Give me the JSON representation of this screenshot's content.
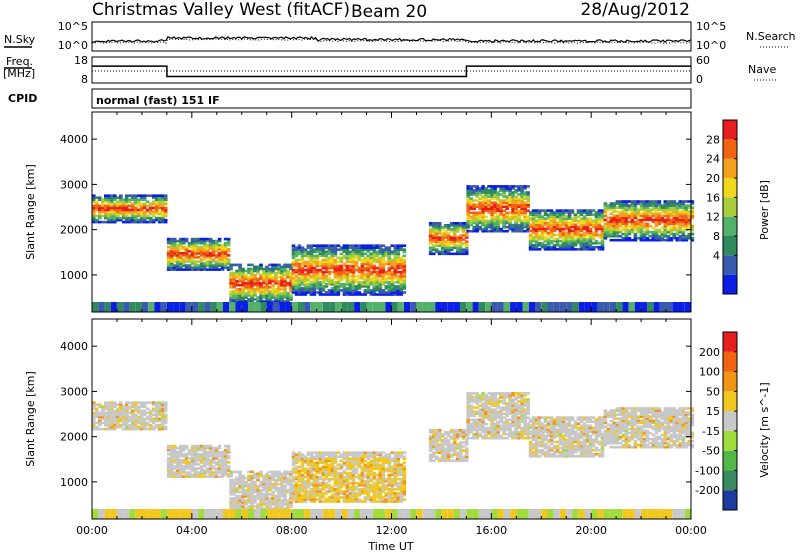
{
  "header": {
    "radar": "Christmas Valley West (fitACF)",
    "beam": "Beam 20",
    "date": "28/Aug/2012"
  },
  "status_panels": {
    "nsky_label": "N.Sky",
    "nsearch_label": "N.Search",
    "noise_scale_top": "10^5",
    "noise_scale_bottom": "10^0",
    "freq_label_line1": "Freq.",
    "freq_label_line2": "[MHz]",
    "freq_ticks": [
      "18",
      "8"
    ],
    "nave_label": "Nave",
    "nave_ticks": [
      "60",
      "0"
    ],
    "cpid_label": "CPID",
    "cpid_value": "normal (fast) 151 IF",
    "frequency_mhz": [
      {
        "start_h": 0,
        "end_h": 3,
        "value": 14.5
      },
      {
        "start_h": 3,
        "end_h": 15,
        "value": 10.5
      },
      {
        "start_h": 15,
        "end_h": 24,
        "value": 14.5
      }
    ]
  },
  "chart_data": [
    {
      "type": "heatmap",
      "quantity": "power",
      "xlabel": "",
      "ylabel": "Slant Range [km]",
      "x_range_h": [
        0,
        24
      ],
      "ylim": [
        180,
        4600
      ],
      "yticks": [
        1000,
        2000,
        3000,
        4000
      ],
      "colorbar": {
        "label": "Power [dB]",
        "ticks": [
          "28",
          "24",
          "20",
          "16",
          "12",
          "8",
          "4"
        ],
        "colors": [
          "#0a1ee6",
          "#3a5ab0",
          "#2f8a5e",
          "#52b26a",
          "#a8cc3a",
          "#f0d81e",
          "#f5a01e",
          "#f06414",
          "#e61e1e"
        ]
      },
      "regions": [
        {
          "start_h": 0,
          "end_h": 3,
          "range_km": [
            2300,
            2600
          ]
        },
        {
          "start_h": 3,
          "end_h": 5.5,
          "range_km": [
            1250,
            1650
          ]
        },
        {
          "start_h": 5.5,
          "end_h": 8,
          "range_km": [
            500,
            1100
          ]
        },
        {
          "start_h": 8,
          "end_h": 12.5,
          "range_km": [
            700,
            1500
          ]
        },
        {
          "start_h": 13.5,
          "end_h": 15,
          "range_km": [
            1600,
            2000
          ]
        },
        {
          "start_h": 15,
          "end_h": 17.5,
          "range_km": [
            2100,
            2800
          ]
        },
        {
          "start_h": 17.5,
          "end_h": 20.5,
          "range_km": [
            1700,
            2300
          ]
        },
        {
          "start_h": 20.5,
          "end_h": 24,
          "range_km": [
            1900,
            2500
          ]
        }
      ]
    },
    {
      "type": "heatmap",
      "quantity": "velocity",
      "xlabel": "Time UT",
      "ylabel": "Slant Range [km]",
      "x_range_h": [
        0,
        24
      ],
      "x_ticks": [
        "00:00",
        "04:00",
        "08:00",
        "12:00",
        "16:00",
        "20:00",
        "00:00"
      ],
      "ylim": [
        180,
        4600
      ],
      "yticks": [
        1000,
        2000,
        3000,
        4000
      ],
      "colorbar": {
        "label": "Velocity [m s^-1]",
        "ticks": [
          "200",
          "100",
          "50",
          "15",
          "-15",
          "-50",
          "-100",
          "-200"
        ],
        "colors": [
          "#1e3ca0",
          "#3c8a60",
          "#52b84a",
          "#a0dc3c",
          "#c8c8c8",
          "#f0c81e",
          "#f09614",
          "#f06414",
          "#e61e1e"
        ]
      }
    }
  ]
}
